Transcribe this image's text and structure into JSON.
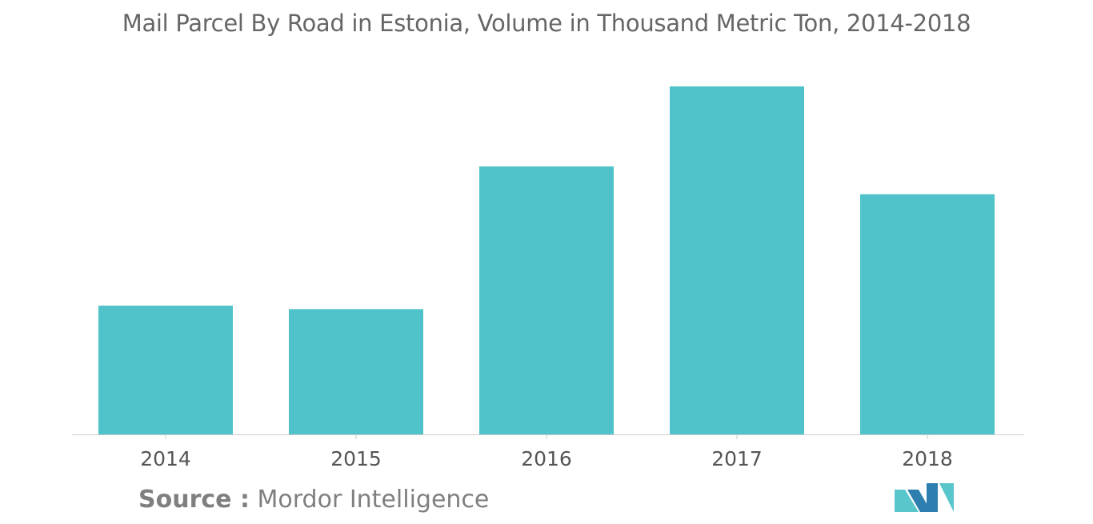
{
  "chart_data": {
    "type": "bar",
    "title": "Mail Parcel By Road in Estonia, Volume in Thousand Metric Ton, 2014-2018",
    "categories": [
      "2014",
      "2015",
      "2016",
      "2017",
      "2018"
    ],
    "values": [
      37,
      36,
      77,
      100,
      69
    ],
    "xlabel": "",
    "ylabel": "",
    "ylim": [
      0,
      100
    ],
    "grid": false,
    "legend": "none",
    "bar_color": "#4fc3c9",
    "axis_color": "#cccccc"
  },
  "source": {
    "label": "Source :",
    "text": "Mordor Intelligence"
  },
  "logo": {
    "icon": "mordor-intelligence-logo-icon",
    "colors": [
      "#2e7fb0",
      "#59c6cc"
    ]
  }
}
